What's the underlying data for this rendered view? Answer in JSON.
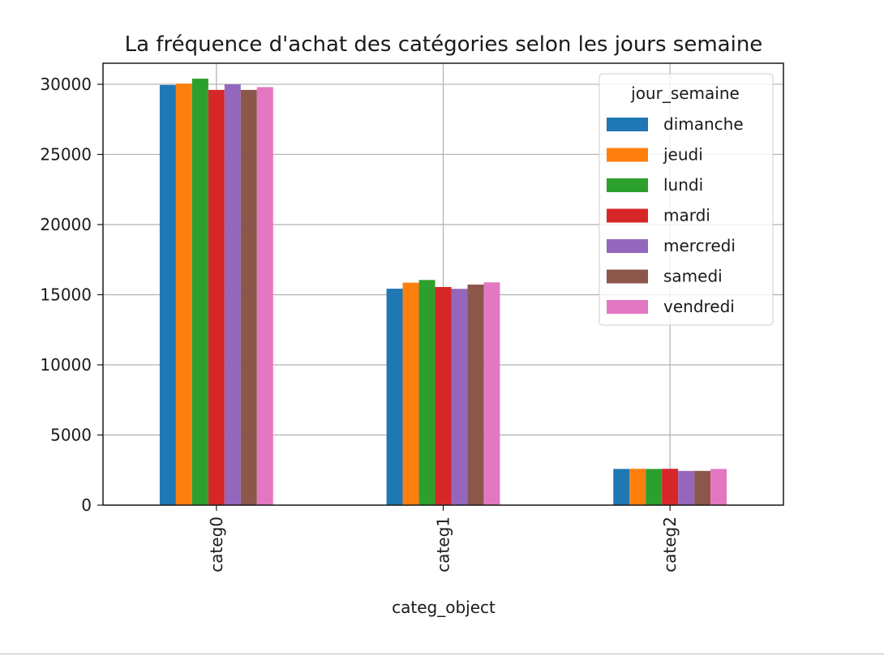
{
  "chart_data": {
    "type": "bar",
    "title": "La fréquence d'achat des catégories selon les jours semaine",
    "xlabel": "categ_object",
    "ylabel": "",
    "categories": [
      "categ0",
      "categ1",
      "categ2"
    ],
    "ylim": [
      0,
      31500
    ],
    "yticks": [
      0,
      5000,
      10000,
      15000,
      20000,
      25000,
      30000
    ],
    "grid": true,
    "legend": {
      "title": "jour_semaine",
      "placement": "top-right"
    },
    "series": [
      {
        "name": "dimanche",
        "color": "#1f77b4",
        "values": [
          29950,
          15430,
          2580
        ]
      },
      {
        "name": "jeudi",
        "color": "#ff7f0e",
        "values": [
          30050,
          15860,
          2590
        ]
      },
      {
        "name": "lundi",
        "color": "#2ca02c",
        "values": [
          30400,
          16050,
          2580
        ]
      },
      {
        "name": "mardi",
        "color": "#d62728",
        "values": [
          29600,
          15550,
          2590
        ]
      },
      {
        "name": "mercredi",
        "color": "#9467bd",
        "values": [
          30000,
          15420,
          2440
        ]
      },
      {
        "name": "samedi",
        "color": "#8c564b",
        "values": [
          29600,
          15720,
          2440
        ]
      },
      {
        "name": "vendredi",
        "color": "#e377c2",
        "values": [
          29800,
          15880,
          2580
        ]
      }
    ]
  }
}
